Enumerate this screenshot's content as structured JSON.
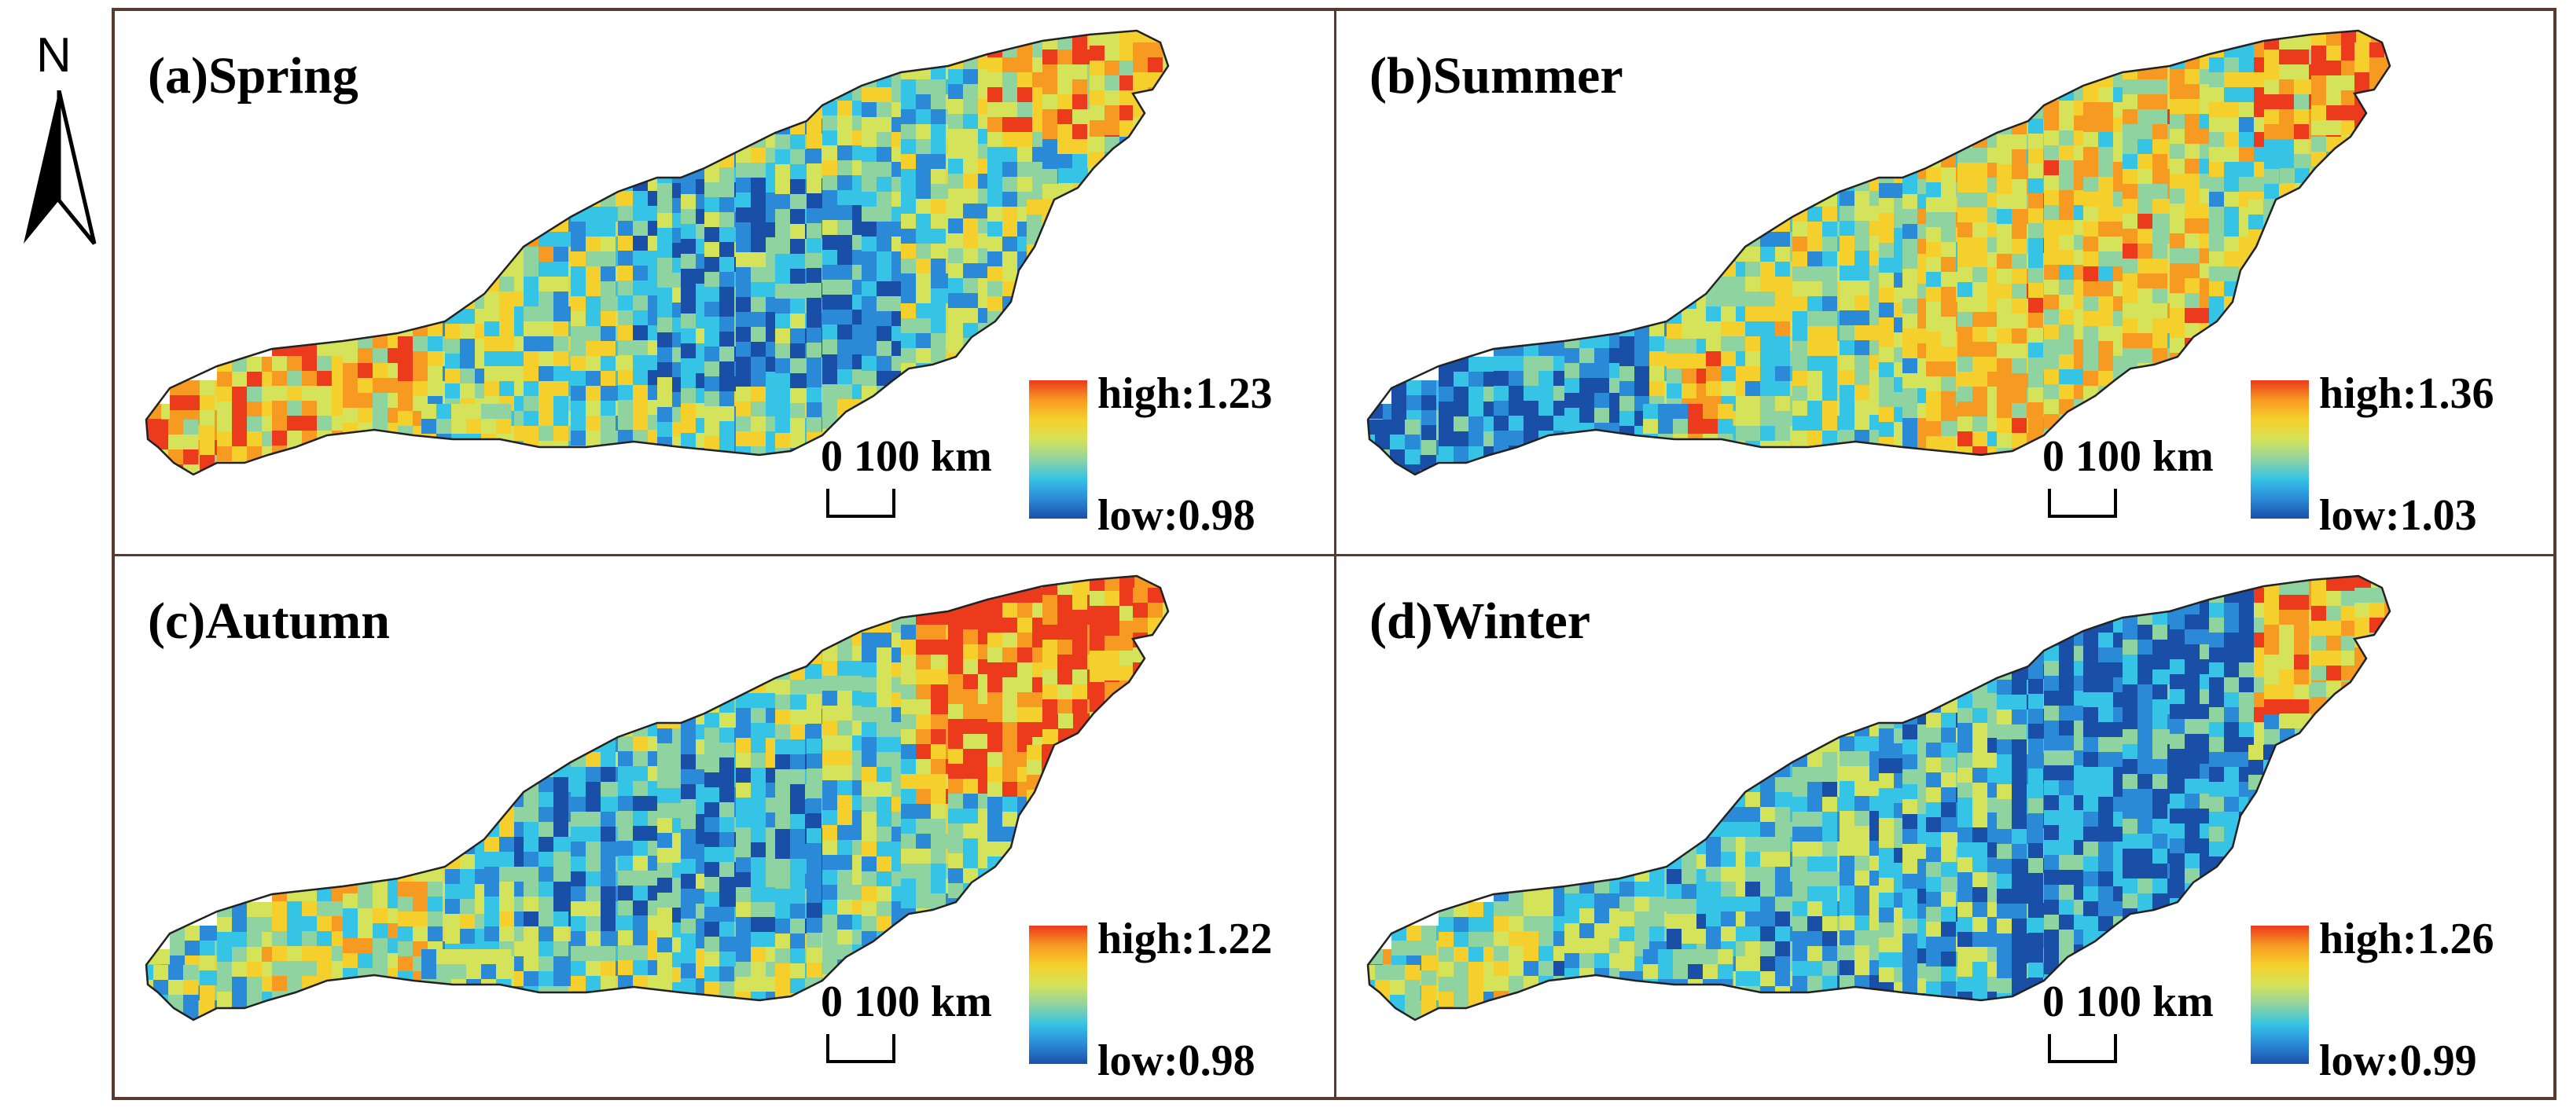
{
  "north_arrow": {
    "label": "N"
  },
  "panels": [
    {
      "title": "(a)Spring",
      "high": "high:1.23",
      "low": "low:0.98",
      "scale": "0 100 km",
      "seed": 11,
      "pattern": "spring"
    },
    {
      "title": "(b)Summer",
      "high": "high:1.36",
      "low": "low:1.03",
      "scale": "0 100 km",
      "seed": 23,
      "pattern": "summer"
    },
    {
      "title": "(c)Autumn",
      "high": "high:1.22",
      "low": "low:0.98",
      "scale": "0 100 km",
      "seed": 37,
      "pattern": "autumn"
    },
    {
      "title": "(d)Winter",
      "high": "high:1.26",
      "low": "low:0.99",
      "scale": "0 100 km",
      "seed": 53,
      "pattern": "winter"
    }
  ],
  "colors": {
    "ramp": [
      "#1a4fa8",
      "#2a8ad8",
      "#35c3e6",
      "#8fd3a0",
      "#d5e35a",
      "#f5d02c",
      "#f79a22",
      "#ec3a1c"
    ],
    "frame": "#5a3a30"
  }
}
